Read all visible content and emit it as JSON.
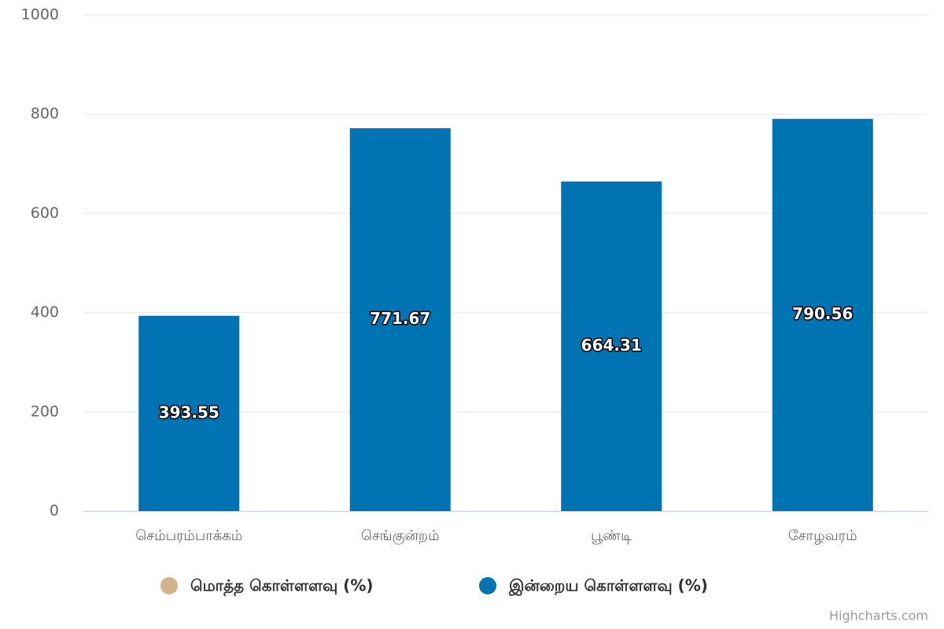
{
  "chart_data": {
    "type": "bar",
    "categories": [
      "செம்பரம்பாக்கம்",
      "செங்குன்றம்",
      "பூண்டி",
      "சோழவரம்"
    ],
    "series": [
      {
        "name": "மொத்த கொள்ளளவு (%)",
        "color": "#d2b48c",
        "values": [
          null,
          null,
          null,
          null
        ]
      },
      {
        "name": "இன்றைய கொள்ளளவு (%)",
        "color": "#0073b3",
        "values": [
          393.55,
          771.67,
          664.31,
          790.56
        ]
      }
    ],
    "ylim": [
      0,
      1000
    ],
    "yticks": [
      0,
      200,
      400,
      600,
      800,
      1000
    ],
    "grid": true,
    "credits": "Highcharts.com"
  }
}
